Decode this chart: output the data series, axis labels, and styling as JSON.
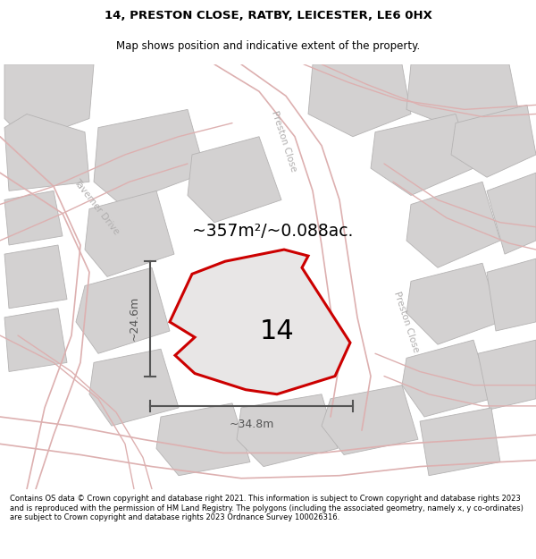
{
  "title_line1": "14, PRESTON CLOSE, RATBY, LEICESTER, LE6 0HX",
  "title_line2": "Map shows position and indicative extent of the property.",
  "footer_text": "Contains OS data © Crown copyright and database right 2021. This information is subject to Crown copyright and database rights 2023 and is reproduced with the permission of HM Land Registry. The polygons (including the associated geometry, namely x, y co-ordinates) are subject to Crown copyright and database rights 2023 Ordnance Survey 100026316.",
  "area_label": "~357m²/~0.088ac.",
  "number_label": "14",
  "dim_horiz": "~34.8m",
  "dim_vert": "~24.6m",
  "map_bg": "#f0eeee",
  "plot_fill": "#e8e6e6",
  "plot_edge": "#cc0000",
  "road_line_color": "#e8b4b4",
  "block_fill": "#d8d6d6",
  "block_edge": "#c0bebe",
  "street_label_color": "#b0aeae",
  "dim_color": "#555555"
}
